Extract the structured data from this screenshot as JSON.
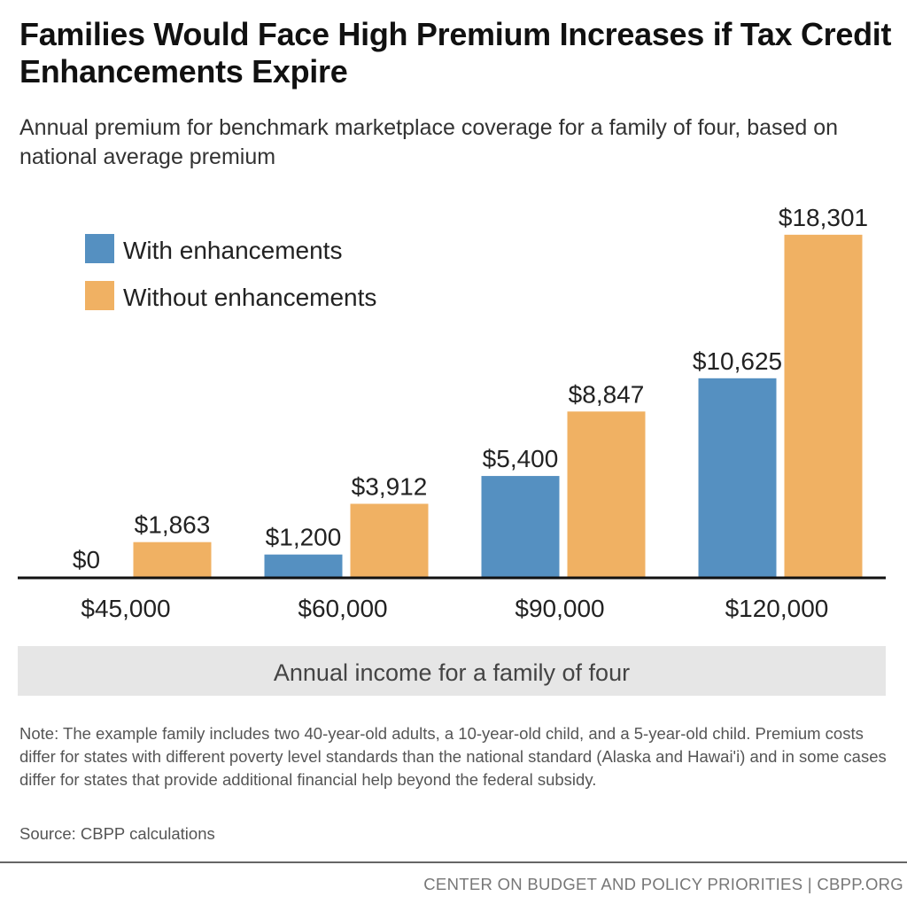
{
  "title": "Families Would Face High Premium Increases if Tax Credit Enhancements Expire",
  "subtitle": "Annual premium for benchmark marketplace coverage for a family of four, based on national average premium",
  "chart_data": {
    "type": "bar",
    "title": "Families Would Face High Premium Increases if Tax Credit Enhancements Expire",
    "xlabel": "Annual income for a family of four",
    "ylabel": "",
    "categories": [
      "$45,000",
      "$60,000",
      "$90,000",
      "$120,000"
    ],
    "series": [
      {
        "name": "With enhancements",
        "color": "#5590c1",
        "values": [
          0,
          1200,
          5400,
          10625
        ],
        "labels": [
          "$0",
          "$1,200",
          "$5,400",
          "$10,625"
        ]
      },
      {
        "name": "Without enhancements",
        "color": "#f0b163",
        "values": [
          1863,
          3912,
          8847,
          18301
        ],
        "labels": [
          "$1,863",
          "$3,912",
          "$8,847",
          "$18,301"
        ]
      }
    ],
    "ylim": [
      0,
      20000
    ],
    "grid": false,
    "legend_position": "top-left"
  },
  "note": "Note: The example family includes two 40-year-old adults, a 10-year-old child, and a 5-year-old child. Premium costs differ for states with different poverty level standards than the national standard (Alaska and Hawai'i) and in some cases differ for states that provide additional financial help beyond the federal subsidy.",
  "source": "Source: CBPP calculations",
  "footer": "CENTER ON BUDGET AND POLICY PRIORITIES | CBPP.ORG"
}
